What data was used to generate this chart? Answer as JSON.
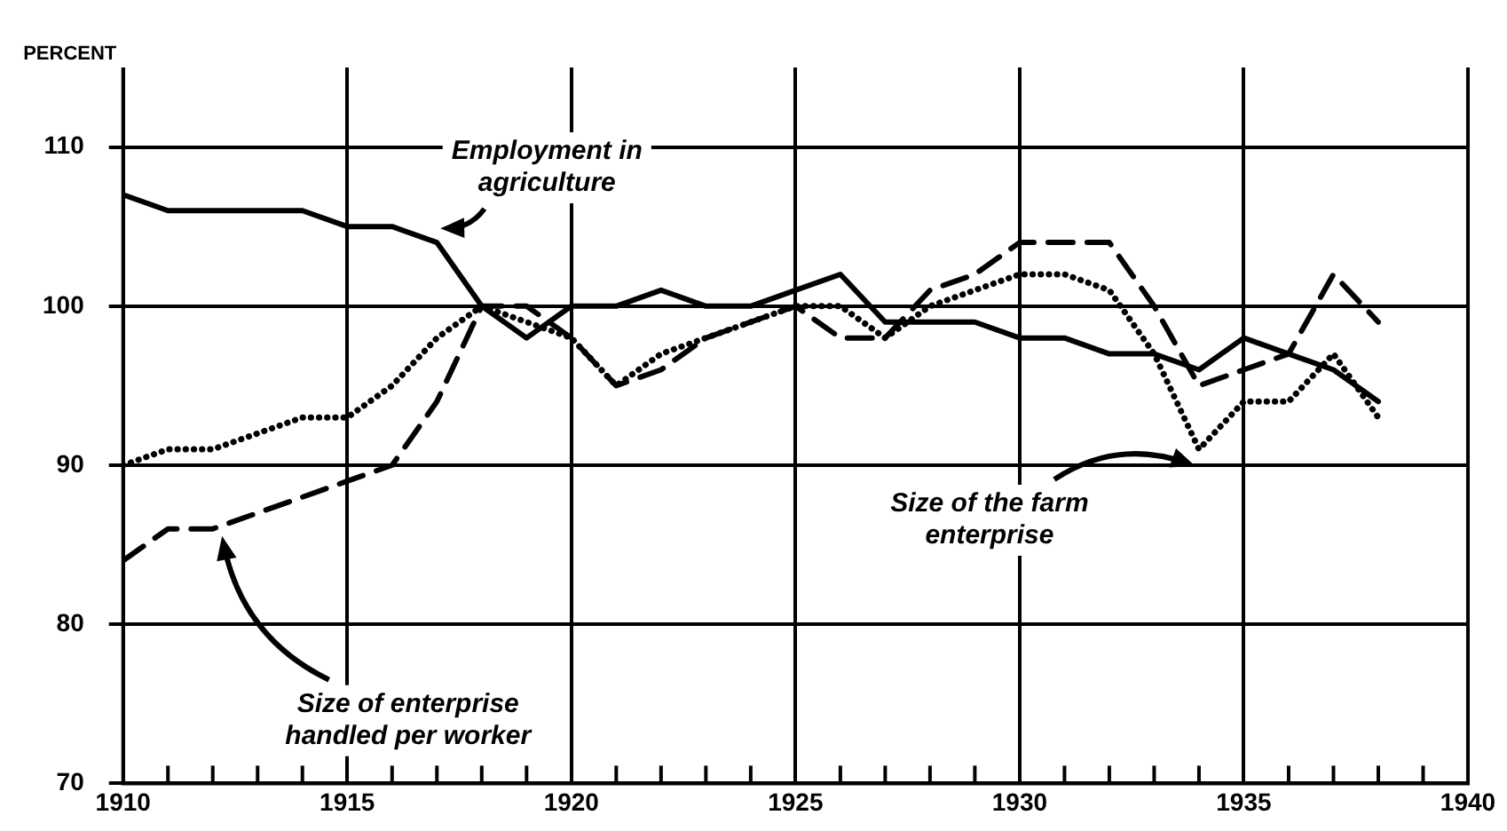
{
  "chart_data": {
    "type": "line",
    "ylabel": "PERCENT",
    "x": [
      1910,
      1911,
      1912,
      1913,
      1914,
      1915,
      1916,
      1917,
      1918,
      1919,
      1920,
      1921,
      1922,
      1923,
      1924,
      1925,
      1926,
      1927,
      1928,
      1929,
      1930,
      1931,
      1932,
      1933,
      1934,
      1935,
      1936,
      1937,
      1938
    ],
    "series": [
      {
        "name": "Employment in\nagriculture",
        "color": "#000000",
        "line_style": "solid",
        "values": [
          107,
          106,
          106,
          106,
          106,
          105,
          105,
          104,
          100,
          98,
          100,
          100,
          101,
          100,
          100,
          101,
          102,
          99,
          99,
          99,
          98,
          98,
          97,
          97,
          96,
          98,
          97,
          96,
          94
        ]
      },
      {
        "name": "Size of enterprise\nhandled per worker",
        "color": "#000000",
        "line_style": "dashed",
        "values": [
          84,
          86,
          86,
          87,
          88,
          89,
          90,
          94,
          100,
          100,
          98,
          95,
          96,
          98,
          99,
          100,
          98,
          98,
          101,
          102,
          104,
          104,
          104,
          100,
          95,
          96,
          97,
          102,
          99
        ]
      },
      {
        "name": "Size of the farm\nenterprise",
        "color": "#000000",
        "line_style": "dotted",
        "values": [
          90,
          91,
          91,
          92,
          93,
          93,
          95,
          98,
          100,
          99,
          98,
          95,
          97,
          98,
          99,
          100,
          100,
          98,
          100,
          101,
          102,
          102,
          101,
          97,
          91,
          94,
          94,
          97,
          93
        ]
      }
    ],
    "xlim": [
      1910,
      1940
    ],
    "xticks": [
      1910,
      {
        "value": 1911,
        "label": null
      },
      {
        "value": 1912,
        "label": null
      },
      {
        "value": 1913,
        "label": null
      },
      {
        "value": 1914,
        "label": null
      },
      1915,
      {
        "value": 1916,
        "label": null
      },
      {
        "value": 1917,
        "label": null
      },
      {
        "value": 1918,
        "label": null
      },
      {
        "value": 1919,
        "label": null
      },
      1920,
      {
        "value": 1921,
        "label": null
      },
      {
        "value": 1922,
        "label": null
      },
      {
        "value": 1923,
        "label": null
      },
      {
        "value": 1924,
        "label": null
      },
      1925,
      {
        "value": 1926,
        "label": null
      },
      {
        "value": 1927,
        "label": null
      },
      {
        "value": 1928,
        "label": null
      },
      {
        "value": 1929,
        "label": null
      },
      1930,
      {
        "value": 1931,
        "label": null
      },
      {
        "value": 1932,
        "label": null
      },
      {
        "value": 1933,
        "label": null
      },
      {
        "value": 1934,
        "label": null
      },
      1935,
      {
        "value": 1936,
        "label": null
      },
      {
        "value": 1937,
        "label": null
      },
      {
        "value": 1938,
        "label": null
      },
      {
        "value": 1939,
        "label": null
      },
      1940
    ],
    "ylim": [
      70,
      115
    ],
    "yticks": [
      70,
      80,
      90,
      100,
      110
    ],
    "grid": true,
    "marker": "none"
  }
}
